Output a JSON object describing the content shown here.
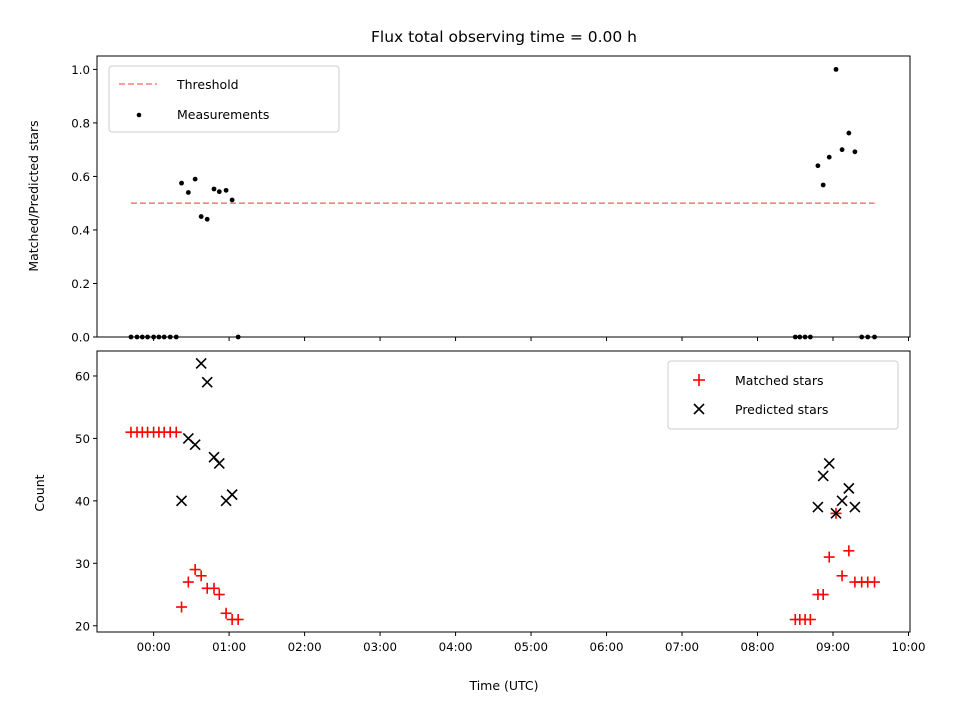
{
  "figure": {
    "title": "Flux total observing time = 0.00 h"
  },
  "chart_data": [
    {
      "type": "scatter",
      "title": "Flux total observing time = 0.00 h",
      "xlabel": "",
      "ylabel": "Matched/Predicted stars",
      "ylim": [
        0,
        1.05
      ],
      "yticks": [
        0.0,
        0.2,
        0.4,
        0.6,
        0.8,
        1.0
      ],
      "ytick_labels": [
        "0.0",
        "0.2",
        "0.4",
        "0.6",
        "0.8",
        "1.0"
      ],
      "xlim_hours": [
        -0.75,
        10.02
      ],
      "legend_placement": "upper-left",
      "series": [
        {
          "name": "Threshold",
          "style": "dashed-line",
          "color": "#ff7f7f",
          "x": [
            -0.3,
            9.55
          ],
          "y": [
            0.5,
            0.5
          ]
        },
        {
          "name": "Measurements",
          "style": "dot",
          "color": "#000000",
          "x": [
            -0.3,
            -0.22,
            -0.15,
            -0.08,
            0.0,
            0.07,
            0.14,
            0.22,
            0.3,
            0.37,
            0.46,
            0.55,
            0.63,
            0.71,
            0.8,
            0.87,
            0.96,
            1.04,
            1.12,
            8.5,
            8.56,
            8.63,
            8.7,
            8.8,
            8.87,
            8.95,
            9.04,
            9.12,
            9.21,
            9.29,
            9.38,
            9.46,
            9.55
          ],
          "y": [
            0.0,
            0.0,
            0.0,
            0.0,
            0.0,
            0.0,
            0.0,
            0.0,
            0.0,
            0.575,
            0.54,
            0.59,
            0.45,
            0.44,
            0.553,
            0.543,
            0.548,
            0.512,
            0.0,
            0.0,
            0.0,
            0.0,
            0.0,
            0.64,
            0.568,
            0.672,
            1.0,
            0.7,
            0.762,
            0.692,
            0.0,
            0.0,
            0.0
          ]
        }
      ]
    },
    {
      "type": "scatter",
      "xlabel": "Time (UTC)",
      "ylabel": "Count",
      "ylim": [
        19,
        64
      ],
      "yticks": [
        20,
        30,
        40,
        50,
        60
      ],
      "ytick_labels": [
        "20",
        "30",
        "40",
        "50",
        "60"
      ],
      "xlim_hours": [
        -0.75,
        10.02
      ],
      "xticks_hours": [
        0,
        1,
        2,
        3,
        4,
        5,
        6,
        7,
        8,
        9,
        10
      ],
      "xtick_labels": [
        "00:00",
        "01:00",
        "02:00",
        "03:00",
        "04:00",
        "05:00",
        "06:00",
        "07:00",
        "08:00",
        "09:00",
        "10:00"
      ],
      "legend_placement": "upper-right",
      "series": [
        {
          "name": "Matched stars",
          "marker": "plus",
          "color": "#ff0000",
          "x": [
            -0.3,
            -0.22,
            -0.15,
            -0.08,
            0.0,
            0.07,
            0.14,
            0.22,
            0.3,
            0.37,
            0.46,
            0.55,
            0.63,
            0.71,
            0.8,
            0.87,
            0.96,
            1.04,
            1.12,
            8.5,
            8.56,
            8.63,
            8.7,
            8.8,
            8.87,
            8.95,
            9.04,
            9.12,
            9.21,
            9.29,
            9.38,
            9.46,
            9.55
          ],
          "y": [
            51,
            51,
            51,
            51,
            51,
            51,
            51,
            51,
            51,
            23,
            27,
            29,
            28,
            26,
            26,
            25,
            22,
            21,
            21,
            21,
            21,
            21,
            21,
            25,
            25,
            31,
            38,
            28,
            32,
            27,
            27,
            27,
            27
          ]
        },
        {
          "name": "Predicted stars",
          "marker": "x",
          "color": "#000000",
          "x": [
            0.37,
            0.46,
            0.55,
            0.63,
            0.71,
            0.8,
            0.87,
            0.96,
            1.04,
            8.8,
            8.87,
            8.95,
            9.04,
            9.12,
            9.21,
            9.29
          ],
          "y": [
            40,
            50,
            49,
            62,
            59,
            47,
            46,
            40,
            41,
            39,
            44,
            46,
            38,
            40,
            42,
            39
          ]
        }
      ]
    }
  ]
}
